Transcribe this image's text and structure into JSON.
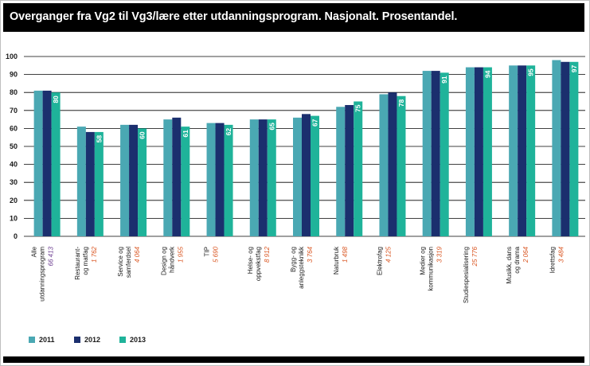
{
  "title": "Overganger fra Vg2 til Vg3/lære etter utdanningsprogram. Nasjonalt. Prosentandel.",
  "colors": {
    "s2011": "#4aa8b3",
    "s2012": "#1b2f6e",
    "s2013": "#1fb39a",
    "grid": "#000000",
    "count": "#d9531e",
    "count_first": "#6a3b8f"
  },
  "chart_data": {
    "type": "bar",
    "title": "Overganger fra Vg2 til Vg3/lære etter utdanningsprogram. Nasjonalt. Prosentandel.",
    "ylim": [
      0,
      100
    ],
    "yticks": [
      "0",
      "10",
      "20",
      "30",
      "40",
      "50",
      "60",
      "70",
      "80",
      "90",
      "100"
    ],
    "grid": true,
    "legend_position": "bottom-left",
    "categories": [
      {
        "label": [
          "Alle",
          "utdanningsprogram"
        ],
        "count": "66 413"
      },
      {
        "label": [
          "Restaurant-",
          "og matfag"
        ],
        "count": "1 762"
      },
      {
        "label": [
          "Service og",
          "samferdsel"
        ],
        "count": "4 064"
      },
      {
        "label": [
          "Design og",
          "håndverk"
        ],
        "count": "1 955"
      },
      {
        "label": [
          "TIP"
        ],
        "count": "5 690"
      },
      {
        "label": [
          "Helse- og",
          "oppvekstfag"
        ],
        "count": "8 912"
      },
      {
        "label": [
          "Bygg- og",
          "anleggsteknikk"
        ],
        "count": "3 764"
      },
      {
        "label": [
          "Naturbruk"
        ],
        "count": "1 498"
      },
      {
        "label": [
          "Elektrofag"
        ],
        "count": "4 125"
      },
      {
        "label": [
          "Medier og",
          "kommunikasjon"
        ],
        "count": "3 319"
      },
      {
        "label": [
          "Studiespesialisering"
        ],
        "count": "25 776"
      },
      {
        "label": [
          "Musikk, dans",
          "og drama"
        ],
        "count": "2 064"
      },
      {
        "label": [
          "Idrettsfag"
        ],
        "count": "3 484"
      }
    ],
    "series": [
      {
        "name": "2011",
        "values": [
          81,
          61,
          62,
          65,
          63,
          65,
          66,
          72,
          79,
          92,
          94,
          95,
          98
        ]
      },
      {
        "name": "2012",
        "values": [
          81,
          58,
          62,
          66,
          63,
          65,
          68,
          73,
          80,
          92,
          94,
          95,
          97
        ]
      },
      {
        "name": "2013",
        "values": [
          80,
          58,
          60,
          61,
          62,
          65,
          67,
          75,
          78,
          91,
          94,
          95,
          97
        ]
      }
    ],
    "data_labels_series": "2013"
  }
}
